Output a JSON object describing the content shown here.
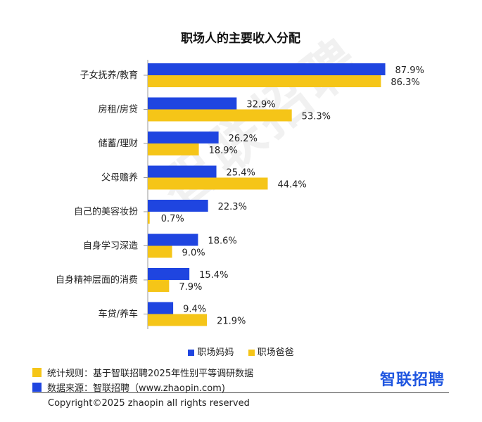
{
  "chart_data": {
    "type": "bar",
    "orientation": "horizontal",
    "title": "职场人的主要收入分配",
    "categories": [
      "子女抚养/教育",
      "房租/房贷",
      "储蓄/理财",
      "父母赡养",
      "自己的美容妆扮",
      "自身学习深造",
      "自身精神层面的消费",
      "车贷/养车"
    ],
    "series": [
      {
        "name": "职场妈妈",
        "color": "#1f45e0",
        "values": [
          87.9,
          32.9,
          26.2,
          25.4,
          22.3,
          18.6,
          15.4,
          9.4
        ],
        "labels": [
          "87.9%",
          "32.9%",
          "26.2%",
          "25.4%",
          "22.3%",
          "18.6%",
          "15.4%",
          "9.4%"
        ]
      },
      {
        "name": "职场爸爸",
        "color": "#f5c518",
        "values": [
          86.3,
          53.3,
          18.9,
          44.4,
          0.7,
          9.0,
          7.9,
          21.9
        ],
        "labels": [
          "86.3%",
          "53.3%",
          "18.9%",
          "44.4%",
          "0.7%",
          "9.0%",
          "7.9%",
          "21.9%"
        ]
      }
    ],
    "xlim": [
      0,
      100
    ],
    "grid": false,
    "legend_position": "bottom"
  },
  "watermark": "智联招聘",
  "notes": [
    {
      "color": "#f5c518",
      "text": "统计规则：基于智联招聘2025年性别平等调研数据"
    },
    {
      "color": "#1f45e0",
      "text": "数据来源：智联招聘（www.zhaopin.com)"
    }
  ],
  "logo": "智联招聘",
  "copyright": "Copyright©2025 zhaopin all rights reserved"
}
